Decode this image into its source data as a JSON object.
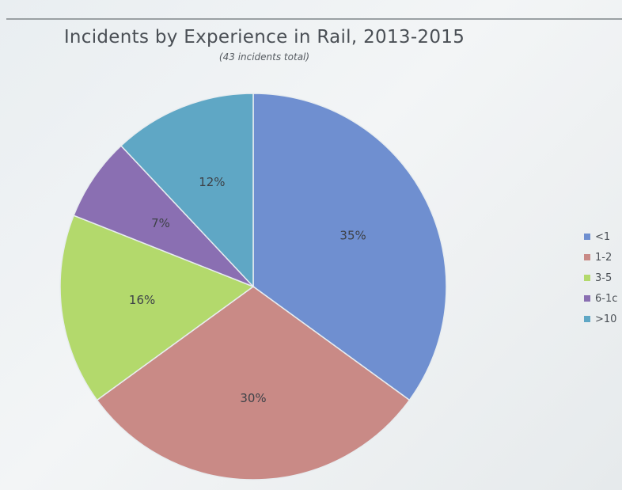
{
  "chart_data": {
    "type": "pie",
    "title": "Incidents by Experience in Rail, 2013-2015",
    "subtitle": "(43 incidents total)",
    "categories": [
      "<1",
      "1-2",
      "3-5",
      "6-10",
      ">10"
    ],
    "values": [
      35,
      30,
      16,
      7,
      12
    ],
    "labels": [
      "35%",
      "30%",
      "16%",
      "7%",
      "12%"
    ],
    "colors": [
      "#6f8fd0",
      "#c98a86",
      "#b3d96c",
      "#8a6fb2",
      "#5fa7c5"
    ],
    "legend_labels": [
      "<1",
      "1-2",
      "3-5",
      "6-1c",
      ">10"
    ],
    "legend_position": "right"
  }
}
